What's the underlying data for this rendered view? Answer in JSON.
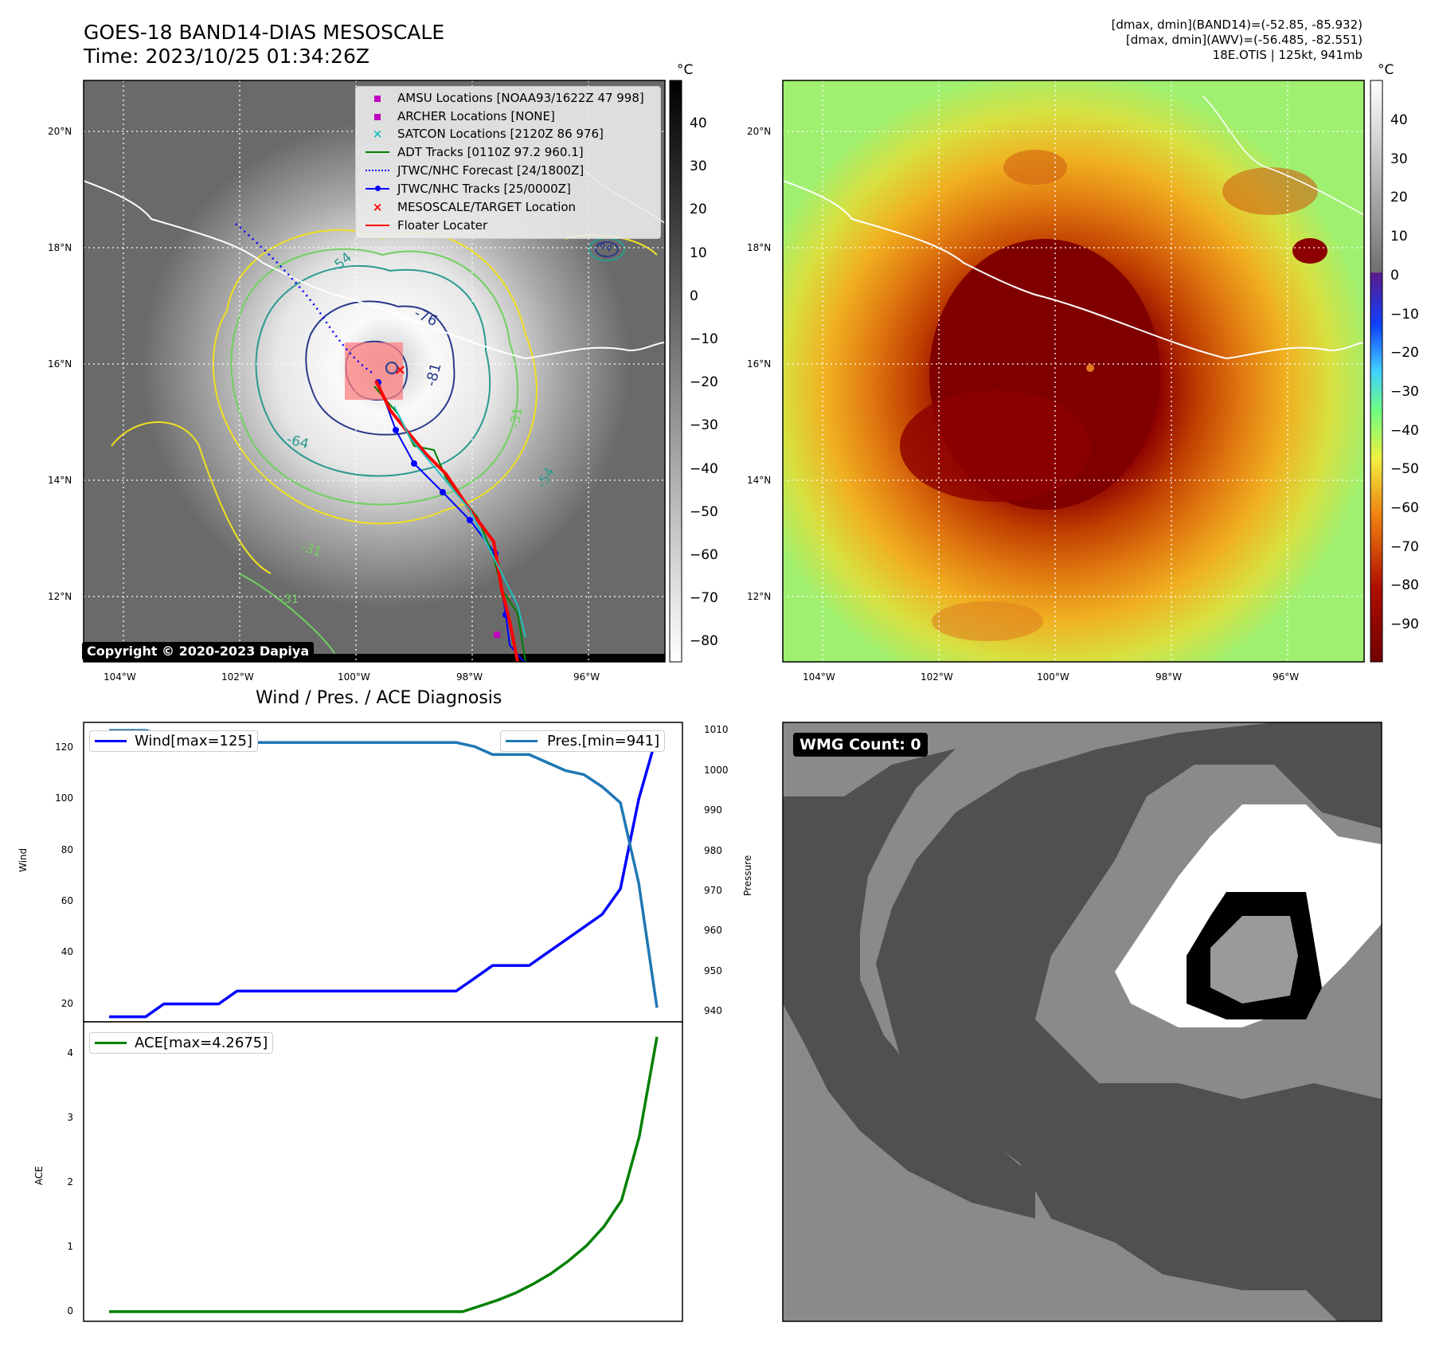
{
  "header": {
    "title_line1": "GOES-18 BAND14-DIAS MESOSCALE",
    "title_line2": "Time: 2023/10/25 01:34:26Z",
    "right_line1": "[dmax, dmin](BAND14)=(-52.85, -85.932)",
    "right_line2": "[dmax, dmin](AWV)=(-56.485, -82.551)",
    "right_line3": "18E.OTIS | 125kt, 941mb"
  },
  "map": {
    "lon_labels": [
      "104°W",
      "102°W",
      "100°W",
      "98°W",
      "96°W"
    ],
    "lat_labels": [
      "20°N",
      "18°N",
      "16°N",
      "14°N",
      "12°N"
    ],
    "copyright": "Copyright © 2020-2023 Dapiya",
    "contour_labels": [
      "-54",
      "-76",
      "-81",
      "-64",
      "-31",
      "-54",
      "-31",
      "-64",
      "-31"
    ],
    "legend": [
      {
        "label": "AMSU Locations [NOAA93/1622Z 47 998]",
        "color": "#c000c0",
        "marker": "square"
      },
      {
        "label": "ARCHER Locations [NONE]",
        "color": "#c000c0",
        "marker": "square"
      },
      {
        "label": "SATCON Locations [2120Z 86 976]",
        "color": "#20c0c0",
        "marker": "x"
      },
      {
        "label": "ADT Tracks [0110Z 97.2 960.1]",
        "color": "#008000",
        "marker": "line"
      },
      {
        "label": "JTWC/NHC Forecast [24/1800Z]",
        "color": "#0000ff",
        "marker": "dotted"
      },
      {
        "label": "JTWC/NHC Tracks [25/0000Z]",
        "color": "#0000ff",
        "marker": "line-dot"
      },
      {
        "label": "MESOSCALE/TARGET Location",
        "color": "#ff0000",
        "marker": "x"
      },
      {
        "label": "Floater Locater",
        "color": "#ff0000",
        "marker": "line"
      }
    ]
  },
  "colorbar_gray": {
    "unit": "°C",
    "ticks": [
      "40",
      "30",
      "20",
      "10",
      "0",
      "−10",
      "−20",
      "−30",
      "−40",
      "−50",
      "−60",
      "−70",
      "−80"
    ]
  },
  "colorbar_color": {
    "unit": "°C",
    "ticks": [
      "40",
      "30",
      "20",
      "10",
      "0",
      "−10",
      "−20",
      "−30",
      "−40",
      "−50",
      "−60",
      "−70",
      "−80",
      "−90"
    ]
  },
  "wmg": {
    "label": "WMG Count: 0"
  },
  "chart_data": [
    {
      "type": "line",
      "title": "Wind / Pres. / ACE Diagnosis",
      "ylabel": "Wind",
      "ylabel_right": "Pressure",
      "ylim": [
        13,
        130
      ],
      "ylim_right": [
        937.5,
        1012
      ],
      "yticks": [
        "120",
        "100",
        "80",
        "60",
        "40",
        "20"
      ],
      "yticks_right": [
        "1010",
        "1000",
        "990",
        "980",
        "970",
        "960",
        "950",
        "940"
      ],
      "series": [
        {
          "name": "Wind[max=125]",
          "color": "#0000ff",
          "values": [
            15,
            15,
            15,
            20,
            20,
            20,
            20,
            25,
            25,
            25,
            25,
            25,
            25,
            25,
            25,
            25,
            25,
            25,
            25,
            25,
            30,
            35,
            35,
            35,
            40,
            45,
            50,
            55,
            65,
            100,
            125
          ]
        },
        {
          "name": "Pres.[min=941]",
          "color": "#1f77b4",
          "values": [
            1010,
            1010,
            1010,
            1009,
            1009,
            1009,
            1009,
            1007,
            1007,
            1007,
            1007,
            1007,
            1007,
            1007,
            1007,
            1007,
            1007,
            1007,
            1007,
            1007,
            1006,
            1004,
            1004,
            1004,
            1002,
            1000,
            999,
            996,
            992,
            972,
            941
          ]
        }
      ]
    },
    {
      "type": "line",
      "ylabel": "ACE",
      "ylim": [
        -0.15,
        4.5
      ],
      "yticks": [
        "4",
        "3",
        "2",
        "1",
        "0"
      ],
      "series": [
        {
          "name": "ACE[max=4.2675]",
          "color": "#008000",
          "values": [
            0,
            0,
            0,
            0,
            0,
            0,
            0,
            0,
            0,
            0,
            0,
            0,
            0,
            0,
            0,
            0,
            0,
            0,
            0,
            0,
            0,
            0.09,
            0.18,
            0.29,
            0.43,
            0.59,
            0.79,
            1.02,
            1.32,
            1.73,
            2.72,
            4.2675
          ]
        }
      ]
    }
  ]
}
